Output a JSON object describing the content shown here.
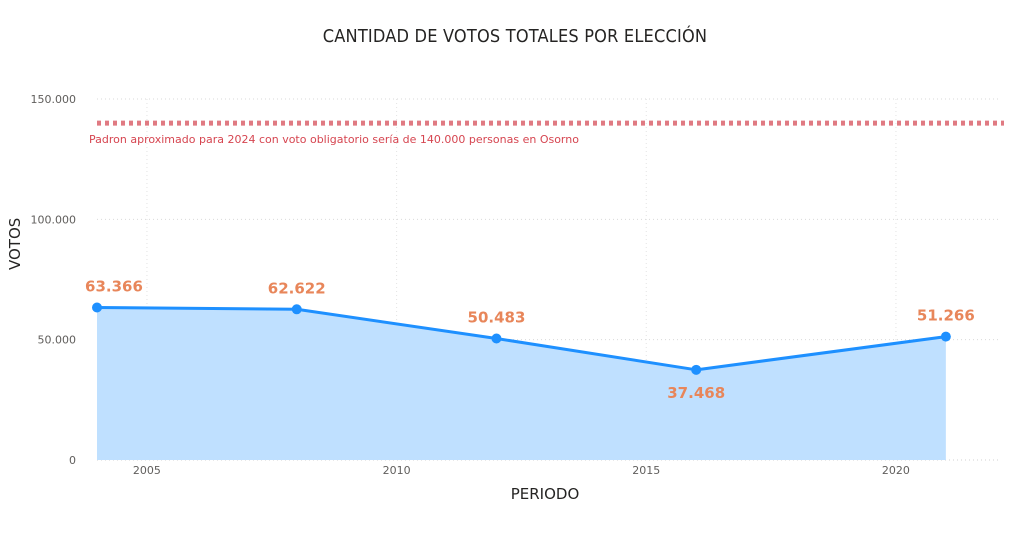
{
  "chart_data": {
    "type": "area",
    "title": "CANTIDAD DE VOTOS TOTALES POR ELECCIÓN",
    "xlabel": "PERIODO",
    "ylabel": "VOTOS",
    "x": [
      2004,
      2008,
      2012,
      2016,
      2021
    ],
    "values": [
      63366,
      62622,
      50483,
      37468,
      51266
    ],
    "data_labels": [
      "63.366",
      "62.622",
      "50.483",
      "37.468",
      "51.266"
    ],
    "xlim": [
      2004,
      2022
    ],
    "ylim": [
      0,
      150000
    ],
    "x_ticks": [
      2005,
      2010,
      2015,
      2020
    ],
    "x_tick_labels": [
      "2005",
      "2010",
      "2015",
      "2020"
    ],
    "y_ticks": [
      0,
      50000,
      100000,
      150000
    ],
    "y_tick_labels": [
      "0",
      "50.000",
      "100.000",
      "150.000"
    ],
    "grid": true,
    "reference_line": {
      "value": 140000,
      "label": "Padron aproximado para 2024 con voto obligatorio sería de 140.000 personas en Osorno",
      "color": "#e07a82"
    },
    "colors": {
      "line": "#1e90ff",
      "area": "#bfe0ff",
      "data_label": "#e8865a"
    }
  }
}
